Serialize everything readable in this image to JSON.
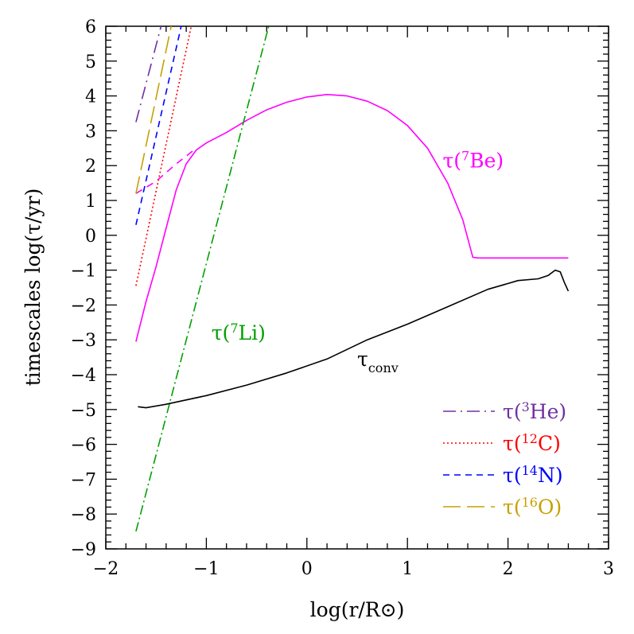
{
  "chart_data": {
    "type": "line",
    "xlabel": "log(r/R⊙)",
    "ylabel": "timescales log(τ/yr)",
    "xlim": [
      -2,
      3
    ],
    "ylim": [
      -9,
      6
    ],
    "x_ticks": [
      -2,
      -1,
      0,
      1,
      2,
      3
    ],
    "x_tick_labels": [
      "−2",
      "−1",
      "0",
      "1",
      "2",
      "3"
    ],
    "y_ticks": [
      -9,
      -8,
      -7,
      -6,
      -5,
      -4,
      -3,
      -2,
      -1,
      0,
      1,
      2,
      3,
      4,
      5,
      6
    ],
    "y_tick_labels": [
      "−9",
      "−8",
      "−7",
      "−6",
      "−5",
      "−4",
      "−3",
      "−2",
      "−1",
      "0",
      "1",
      "2",
      "3",
      "4",
      "5",
      "6"
    ],
    "grid": false,
    "legend_position": "bottom-right",
    "series": [
      {
        "name": "τ(⁷Be)",
        "color": "#ff00ff",
        "style": "solid",
        "points": [
          [
            -1.7,
            -3.05
          ],
          [
            -1.6,
            -1.9
          ],
          [
            -1.5,
            -0.9
          ],
          [
            -1.4,
            0.2
          ],
          [
            -1.3,
            1.3
          ],
          [
            -1.2,
            2.05
          ],
          [
            -1.1,
            2.45
          ],
          [
            -1.0,
            2.65
          ],
          [
            -0.8,
            2.95
          ],
          [
            -0.6,
            3.3
          ],
          [
            -0.4,
            3.6
          ],
          [
            -0.2,
            3.82
          ],
          [
            0.0,
            3.97
          ],
          [
            0.2,
            4.04
          ],
          [
            0.4,
            4.0
          ],
          [
            0.6,
            3.85
          ],
          [
            0.8,
            3.58
          ],
          [
            1.0,
            3.15
          ],
          [
            1.2,
            2.5
          ],
          [
            1.4,
            1.5
          ],
          [
            1.55,
            0.45
          ],
          [
            1.65,
            -0.63
          ],
          [
            1.7,
            -0.65
          ],
          [
            2.0,
            -0.65
          ],
          [
            2.3,
            -0.65
          ],
          [
            2.6,
            -0.65
          ]
        ]
      },
      {
        "name": "τ(⁷Be) (dashed)",
        "color": "#ff00ff",
        "style": "dashed",
        "points": [
          [
            -1.7,
            1.2
          ],
          [
            -1.5,
            1.55
          ],
          [
            -1.3,
            2.05
          ],
          [
            -1.1,
            2.5
          ]
        ]
      },
      {
        "name": "τ(⁷Li)",
        "color": "#00a000",
        "style": "dashdot",
        "points": [
          [
            -1.7,
            -8.5
          ],
          [
            -0.38,
            6.0
          ]
        ]
      },
      {
        "name": "τ_conv",
        "color": "#000000",
        "style": "solid",
        "points": [
          [
            -1.68,
            -4.92
          ],
          [
            -1.6,
            -4.95
          ],
          [
            -1.4,
            -4.85
          ],
          [
            -1.0,
            -4.6
          ],
          [
            -0.6,
            -4.3
          ],
          [
            -0.2,
            -3.95
          ],
          [
            0.2,
            -3.55
          ],
          [
            0.6,
            -3.0
          ],
          [
            1.0,
            -2.55
          ],
          [
            1.4,
            -2.05
          ],
          [
            1.8,
            -1.55
          ],
          [
            2.1,
            -1.3
          ],
          [
            2.3,
            -1.25
          ],
          [
            2.4,
            -1.15
          ],
          [
            2.47,
            -1.0
          ],
          [
            2.52,
            -1.05
          ],
          [
            2.56,
            -1.35
          ],
          [
            2.6,
            -1.6
          ]
        ]
      },
      {
        "name": "τ(³He)",
        "color": "#7030a0",
        "style": "longdash",
        "points": [
          [
            -1.7,
            3.25
          ],
          [
            -1.45,
            6.0
          ]
        ]
      },
      {
        "name": "τ(¹²C)",
        "color": "#ff0000",
        "style": "dotted",
        "points": [
          [
            -1.7,
            -1.45
          ],
          [
            -1.15,
            6.0
          ]
        ]
      },
      {
        "name": "τ(¹⁴N)",
        "color": "#0000ff",
        "style": "shortdash",
        "points": [
          [
            -1.7,
            0.3
          ],
          [
            -1.25,
            6.0
          ]
        ]
      },
      {
        "name": "τ(¹⁶O)",
        "color": "#c8a000",
        "style": "verylongdash",
        "points": [
          [
            -1.7,
            1.2
          ],
          [
            -1.35,
            6.0
          ]
        ]
      }
    ],
    "annotations": [
      {
        "text_main": "τ(",
        "text_sup": "7",
        "text_end": "Be)",
        "color": "#ff00ff",
        "x": 1.35,
        "y": 1.95
      },
      {
        "text_main": "τ(",
        "text_sup": "7",
        "text_end": "Li)",
        "color": "#00a000",
        "x": -0.95,
        "y": -3.0
      },
      {
        "text_main": "τ",
        "text_sub": "conv",
        "color": "#000000",
        "x": 0.5,
        "y": -3.75
      }
    ],
    "legend": [
      {
        "label_main": "τ(",
        "label_sup": "3",
        "label_end": "He)",
        "color": "#7030a0",
        "style": "longdash"
      },
      {
        "label_main": "τ(",
        "label_sup": "12",
        "label_end": "C)",
        "color": "#ff0000",
        "style": "dotted"
      },
      {
        "label_main": "τ(",
        "label_sup": "14",
        "label_end": "N)",
        "color": "#0000ff",
        "style": "shortdash"
      },
      {
        "label_main": "τ(",
        "label_sup": "16",
        "label_end": "O)",
        "color": "#c8a000",
        "style": "verylongdash"
      }
    ]
  }
}
